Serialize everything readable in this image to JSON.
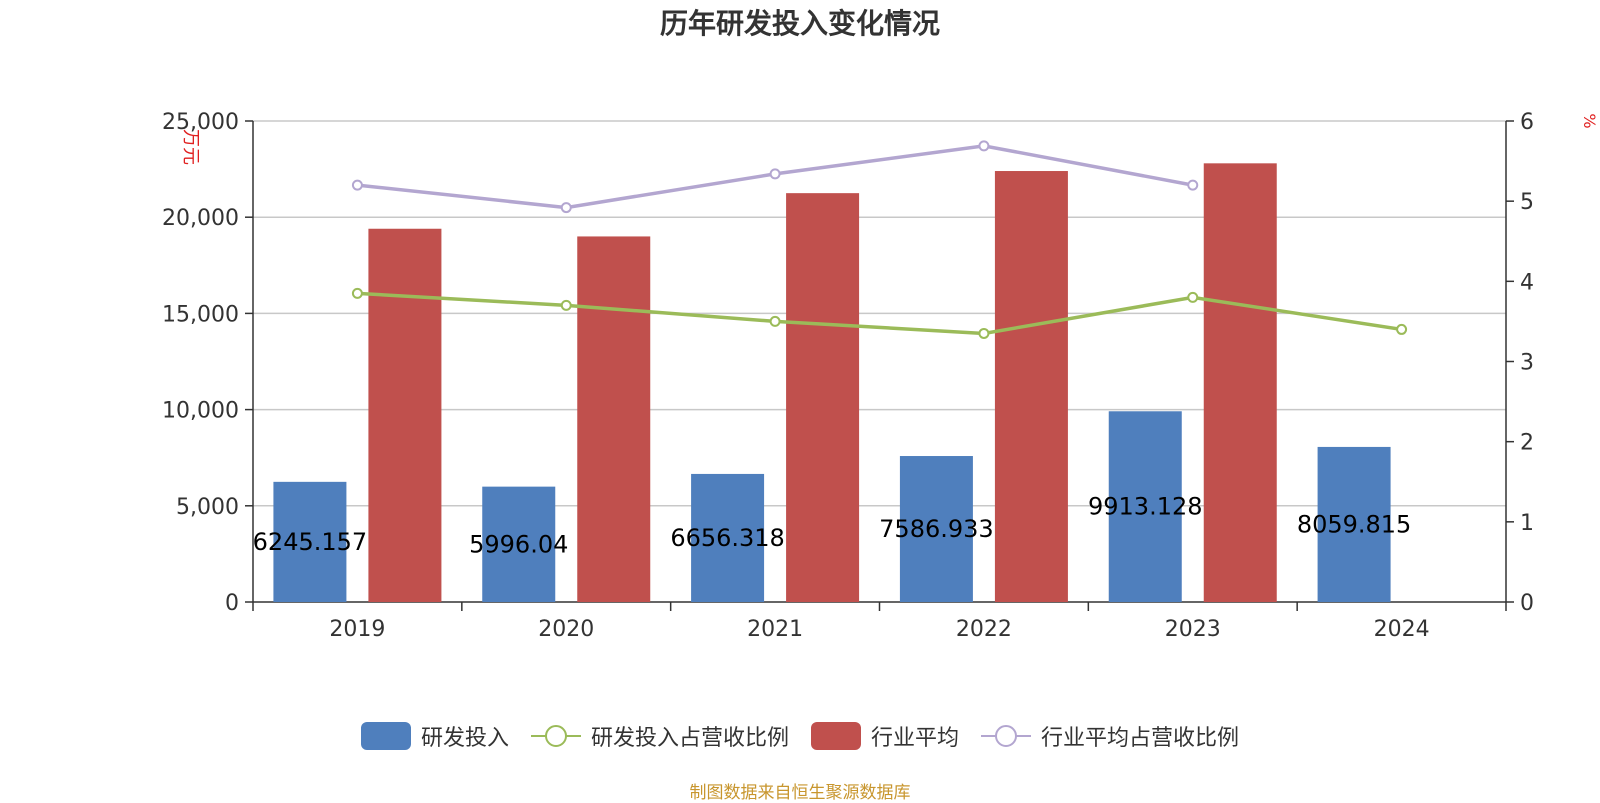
{
  "chart_data": {
    "type": "bar",
    "title": "历年研发投入变化情况",
    "categories": [
      "2019",
      "2020",
      "2021",
      "2022",
      "2023",
      "2024"
    ],
    "y_left_label": "万元",
    "y_right_label": "%",
    "y_left_range": [
      0,
      25000
    ],
    "y_left_ticks": [
      "0",
      "5,000",
      "10,000",
      "15,000",
      "20,000",
      "25,000"
    ],
    "y_right_range": [
      0,
      6
    ],
    "y_right_ticks": [
      "0",
      "1",
      "2",
      "3",
      "4",
      "5",
      "6"
    ],
    "grid": true,
    "legend_position": "bottom",
    "series": [
      {
        "name": "研发投入",
        "kind": "bar",
        "axis": "left",
        "color": "#4f7fbd",
        "values": [
          6245.157,
          5996.04,
          6656.318,
          7586.933,
          9913.128,
          8059.815
        ],
        "labels": [
          "6245.157",
          "5996.04",
          "6656.318",
          "7586.933",
          "9913.128",
          "8059.815"
        ]
      },
      {
        "name": "研发投入占营收比例",
        "kind": "line",
        "axis": "right",
        "color": "#9bbb59",
        "values": [
          3.85,
          3.7,
          3.5,
          3.35,
          3.8,
          3.4
        ]
      },
      {
        "name": "行业平均",
        "kind": "bar",
        "axis": "left",
        "color": "#c0504d",
        "values": [
          19400,
          19000,
          21250,
          22400,
          22800,
          null
        ]
      },
      {
        "name": "行业平均占营收比例",
        "kind": "line",
        "axis": "right",
        "color": "#b3a6d0",
        "values": [
          5.2,
          4.92,
          5.34,
          5.69,
          5.2,
          null
        ]
      }
    ]
  },
  "source": "制图数据来自恒生聚源数据库"
}
